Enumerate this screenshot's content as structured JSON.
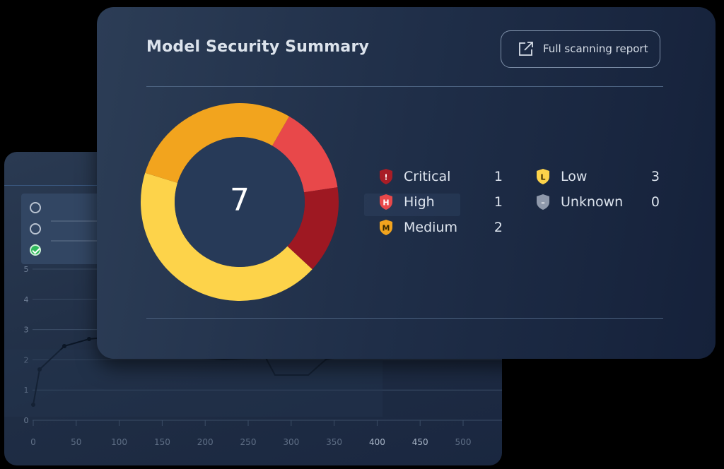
{
  "summary": {
    "title": "Model Security Summary",
    "report_button_label": "Full scanning report",
    "total": "7"
  },
  "chart_data": {
    "type": "pie",
    "categories": [
      "Critical",
      "High",
      "Medium",
      "Low",
      "Unknown"
    ],
    "values": [
      1,
      1,
      2,
      3,
      0
    ],
    "colors": [
      "#9e1822",
      "#e8484a",
      "#f2a41e",
      "#fdd34a",
      "#8f99ab"
    ]
  },
  "legend": [
    {
      "name": "Critical",
      "count": "1",
      "badge": "!",
      "color": "#a81d26"
    },
    {
      "name": "High",
      "count": "1",
      "badge": "H",
      "color": "#e8484a"
    },
    {
      "name": "Medium",
      "count": "2",
      "badge": "M",
      "color": "#f2a41e"
    },
    {
      "name": "Low",
      "count": "3",
      "badge": "L",
      "color": "#fdd34a"
    },
    {
      "name": "Unknown",
      "count": "0",
      "badge": "–",
      "color": "#8f99ab"
    }
  ],
  "background_chart": {
    "y_ticks": [
      "0",
      "1",
      "2",
      "3",
      "4",
      "5"
    ],
    "x_ticks": [
      "0",
      "50",
      "100",
      "150",
      "200",
      "250",
      "300",
      "350",
      "400",
      "450",
      "500"
    ]
  }
}
